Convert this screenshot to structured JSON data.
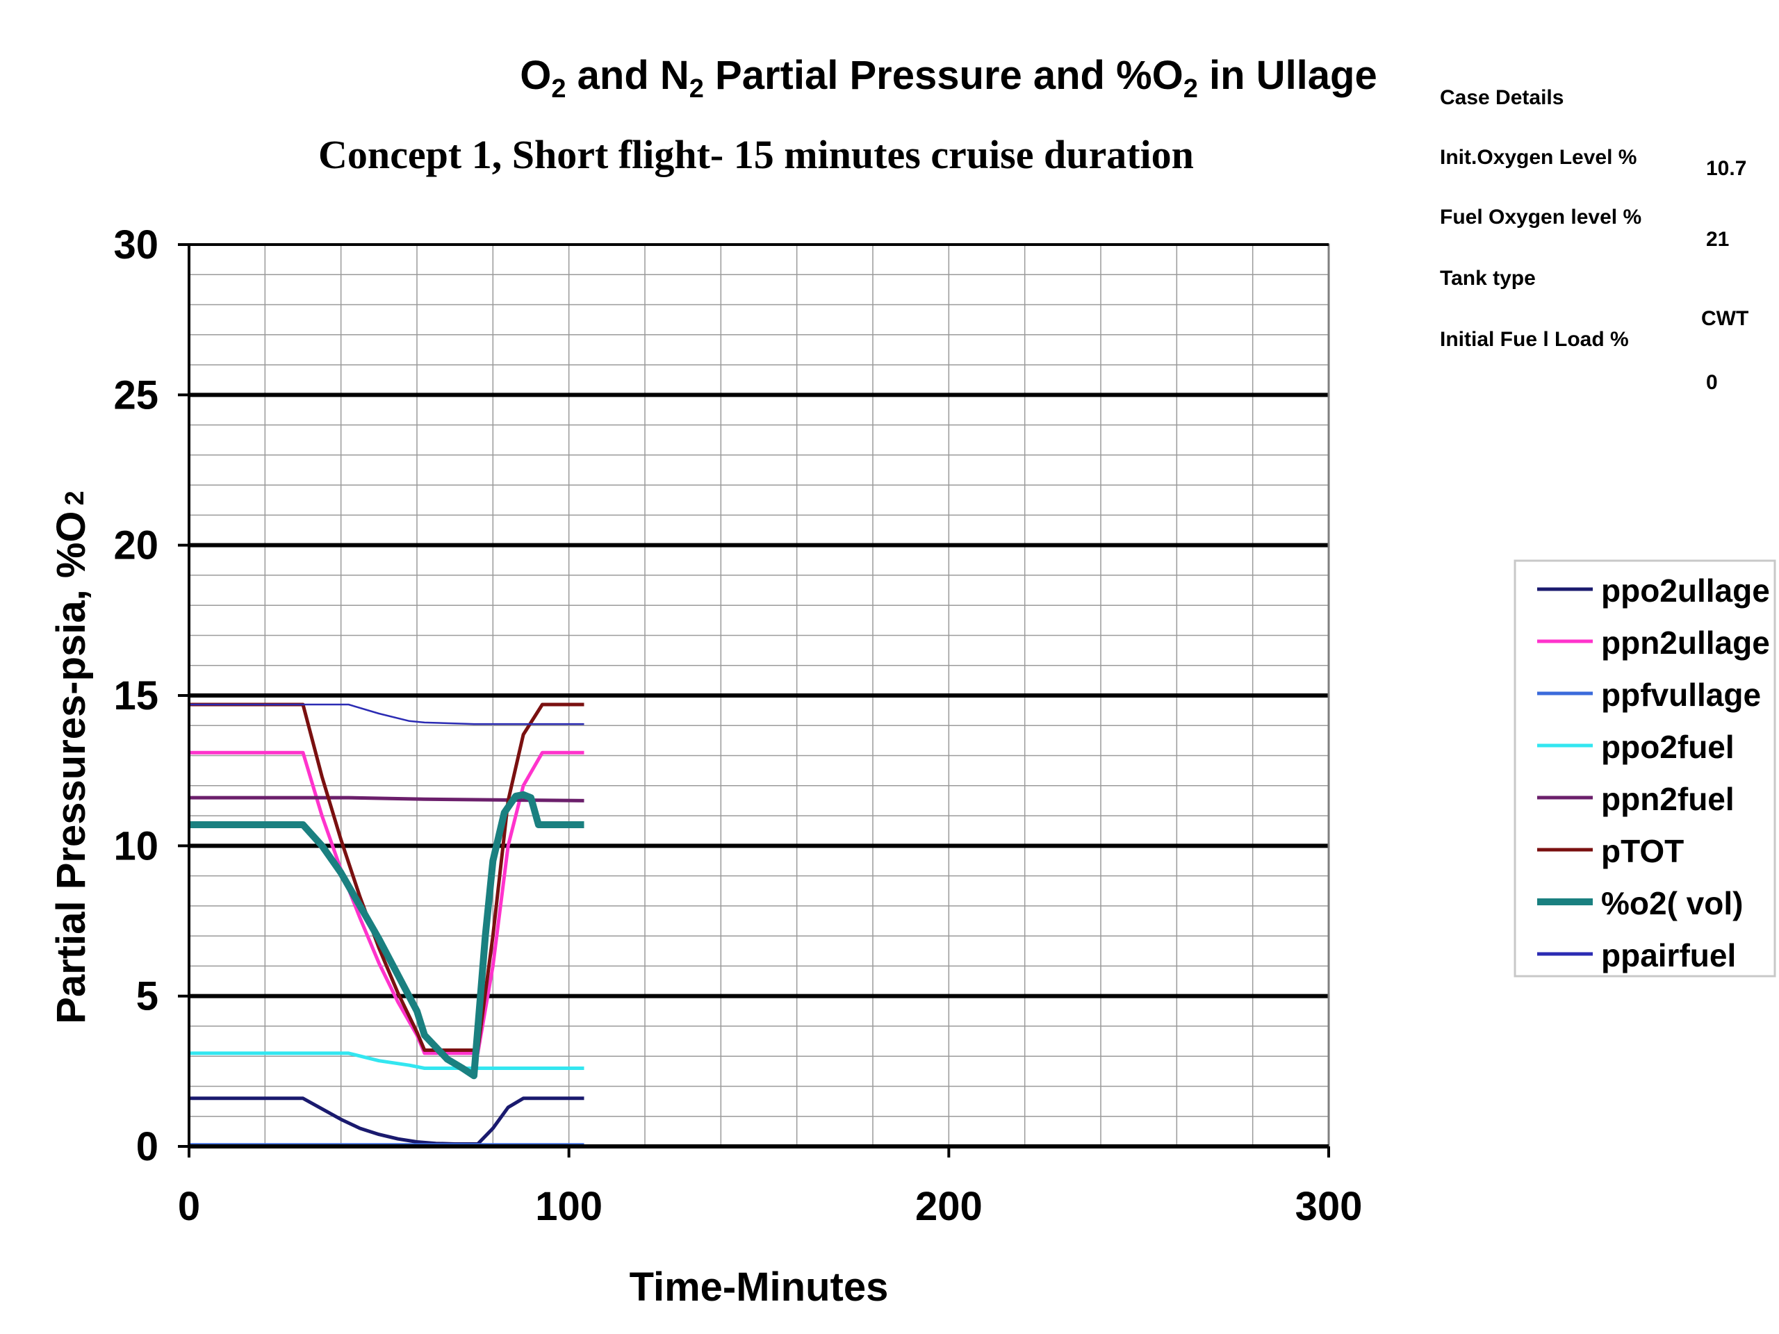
{
  "chart_data": {
    "type": "line",
    "title": "O2 and N2 Partial Pressure and %O2 in Ullage",
    "title_parts": [
      {
        "text": "O",
        "sub": false
      },
      {
        "text": "2",
        "sub": true
      },
      {
        "text": " and N",
        "sub": false
      },
      {
        "text": "2",
        "sub": true
      },
      {
        "text": " Partial Pressure and %O",
        "sub": false
      },
      {
        "text": "2",
        "sub": true
      },
      {
        "text": " in Ullage",
        "sub": false
      }
    ],
    "subtitle": "Concept 1, Short flight- 15 minutes cruise duration",
    "xlabel": "Time-Minutes",
    "ylabel_main": "Partial Pressures-psia, %O",
    "ylabel_sub": "2",
    "xlim": [
      0,
      300
    ],
    "ylim": [
      0,
      30
    ],
    "x_ticks": [
      0,
      100,
      200,
      300
    ],
    "y_ticks": [
      0,
      5,
      10,
      15,
      20,
      25,
      30
    ],
    "x_minor_step": 20,
    "y_minor_step": 1,
    "grid": true,
    "legend_position": "right",
    "series": [
      {
        "name": "ppo2ullage",
        "color": "#1a1a6e",
        "width": 5,
        "points": [
          [
            0,
            1.6
          ],
          [
            30,
            1.6
          ],
          [
            35,
            1.25
          ],
          [
            40,
            0.9
          ],
          [
            45,
            0.6
          ],
          [
            50,
            0.4
          ],
          [
            55,
            0.25
          ],
          [
            60,
            0.15
          ],
          [
            65,
            0.1
          ],
          [
            70,
            0.08
          ],
          [
            76,
            0.08
          ],
          [
            80,
            0.6
          ],
          [
            84,
            1.3
          ],
          [
            88,
            1.6
          ],
          [
            93,
            1.6
          ],
          [
            104,
            1.6
          ]
        ]
      },
      {
        "name": "ppn2ullage",
        "color": "#ff33cc",
        "width": 5,
        "points": [
          [
            0,
            13.1
          ],
          [
            30,
            13.1
          ],
          [
            35,
            11.0
          ],
          [
            40,
            9.2
          ],
          [
            45,
            7.6
          ],
          [
            50,
            6.1
          ],
          [
            55,
            4.8
          ],
          [
            60,
            3.7
          ],
          [
            62,
            3.1
          ],
          [
            76,
            3.1
          ],
          [
            80,
            6.0
          ],
          [
            84,
            10.0
          ],
          [
            88,
            12.0
          ],
          [
            93,
            13.1
          ],
          [
            104,
            13.1
          ]
        ]
      },
      {
        "name": "ppfvullage",
        "color": "#3b6bdb",
        "width": 5,
        "points": [
          [
            0,
            0.05
          ],
          [
            104,
            0.05
          ]
        ]
      },
      {
        "name": "ppo2fuel",
        "color": "#33e6f0",
        "width": 5,
        "points": [
          [
            0,
            3.1
          ],
          [
            42,
            3.1
          ],
          [
            50,
            2.85
          ],
          [
            58,
            2.7
          ],
          [
            62,
            2.6
          ],
          [
            104,
            2.6
          ]
        ]
      },
      {
        "name": "ppn2fuel",
        "color": "#6b1f6b",
        "width": 5,
        "points": [
          [
            0,
            11.6
          ],
          [
            42,
            11.6
          ],
          [
            62,
            11.55
          ],
          [
            104,
            11.5
          ]
        ]
      },
      {
        "name": "pTOT",
        "color": "#7a1010",
        "width": 5,
        "points": [
          [
            0,
            14.7
          ],
          [
            30,
            14.7
          ],
          [
            35,
            12.3
          ],
          [
            40,
            10.2
          ],
          [
            45,
            8.3
          ],
          [
            50,
            6.6
          ],
          [
            55,
            5.1
          ],
          [
            60,
            3.8
          ],
          [
            62,
            3.2
          ],
          [
            76,
            3.2
          ],
          [
            80,
            7.0
          ],
          [
            84,
            11.5
          ],
          [
            88,
            13.7
          ],
          [
            93,
            14.7
          ],
          [
            104,
            14.7
          ]
        ]
      },
      {
        "name": "%o2( vol)",
        "color": "#1a8080",
        "width": 10,
        "points": [
          [
            0,
            10.7
          ],
          [
            30,
            10.7
          ],
          [
            35,
            10.0
          ],
          [
            40,
            9.1
          ],
          [
            45,
            8.0
          ],
          [
            50,
            6.9
          ],
          [
            55,
            5.7
          ],
          [
            60,
            4.5
          ],
          [
            62,
            3.7
          ],
          [
            68,
            2.9
          ],
          [
            72,
            2.6
          ],
          [
            75,
            2.35
          ],
          [
            78,
            7.0
          ],
          [
            80,
            9.5
          ],
          [
            83,
            11.1
          ],
          [
            86,
            11.65
          ],
          [
            88,
            11.7
          ],
          [
            90,
            11.6
          ],
          [
            92,
            10.7
          ],
          [
            104,
            10.7
          ]
        ]
      },
      {
        "name": "ppairfuel",
        "color": "#2b2bb3",
        "width": 2.5,
        "points": [
          [
            0,
            14.7
          ],
          [
            42,
            14.7
          ],
          [
            50,
            14.4
          ],
          [
            58,
            14.15
          ],
          [
            62,
            14.1
          ],
          [
            75,
            14.05
          ],
          [
            104,
            14.05
          ]
        ]
      }
    ]
  },
  "case_details": {
    "heading": "Case Details",
    "rows": [
      {
        "label": "Init.Oxygen Level %",
        "value": "10.7"
      },
      {
        "label": "Fuel Oxygen level %",
        "value": "21"
      },
      {
        "label": "Tank type",
        "value": "CWT"
      },
      {
        "label": "Initial Fue l Load %",
        "value": "0"
      }
    ]
  }
}
